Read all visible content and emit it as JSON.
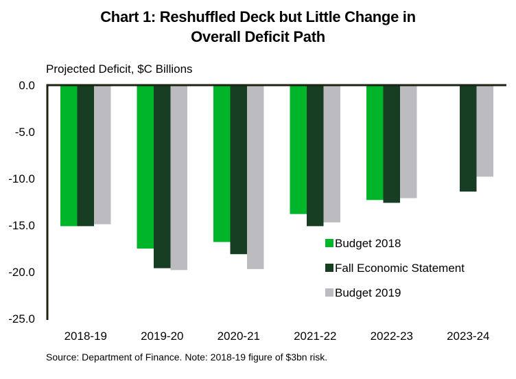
{
  "chart_data": {
    "type": "bar",
    "title": "Chart 1: Reshuffled Deck but Little Change in Overall Deficit Path",
    "title_lines": [
      "Chart 1: Reshuffled Deck but Little Change in",
      "Overall Deficit Path"
    ],
    "xlabel": "",
    "ylabel": "Projected Deficit, $C Billions",
    "ylim": [
      -25.0,
      0.0
    ],
    "yticks": [
      "0.0",
      "-5.0",
      "-10.0",
      "-15.0",
      "-20.0",
      "-25.0"
    ],
    "ytick_values": [
      0,
      -5,
      -10,
      -15,
      -20,
      -25
    ],
    "grid": false,
    "legend_position": "lower-right",
    "categories": [
      "2018-19",
      "2019-20",
      "2020-21",
      "2021-22",
      "2022-23",
      "2023-24"
    ],
    "series": [
      {
        "name": "Budget 2018",
        "color": "#00b52a",
        "values": [
          -15.1,
          -17.5,
          -16.8,
          -13.8,
          -12.3,
          null
        ]
      },
      {
        "name": "Fall Economic Statement",
        "color": "#173d23",
        "values": [
          -15.1,
          -19.6,
          -18.1,
          -15.1,
          -12.6,
          -11.4
        ]
      },
      {
        "name": "Budget 2019",
        "color": "#bcbcc0",
        "values": [
          -14.9,
          -19.8,
          -19.7,
          -14.7,
          -12.1,
          -9.8
        ]
      }
    ],
    "source": "Source: Department of Finance. Note: 2018-19 figure of $3bn risk."
  },
  "colors": {
    "axis": "#1a2410"
  }
}
